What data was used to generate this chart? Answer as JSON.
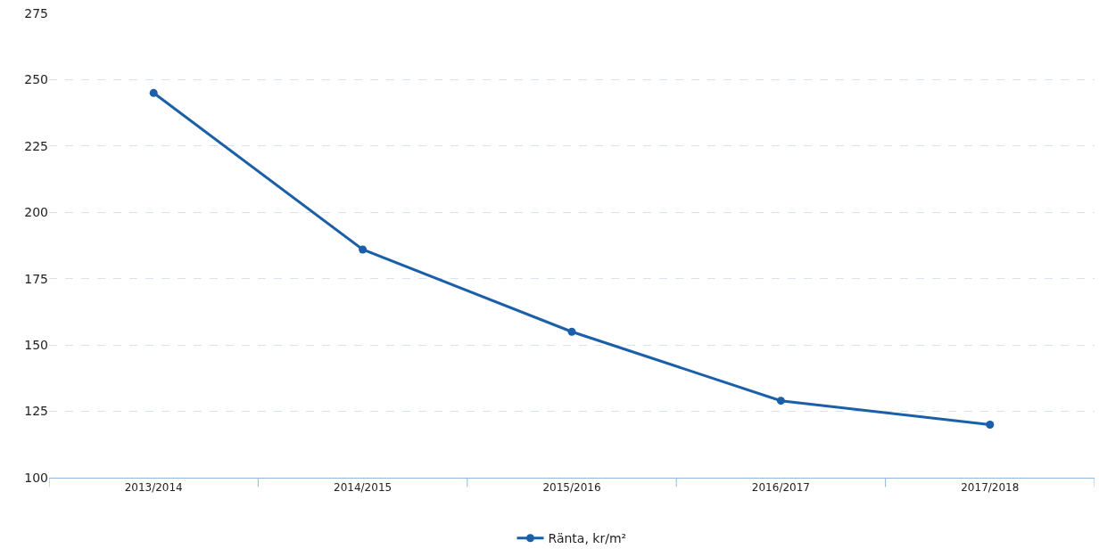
{
  "chart_data": {
    "type": "line",
    "categories": [
      "2013/2014",
      "2014/2015",
      "2015/2016",
      "2016/2017",
      "2017/2018"
    ],
    "series": [
      {
        "name": "Ränta, kr/m²",
        "color": "#1b5fa8",
        "values": [
          245,
          186,
          155,
          129,
          120
        ]
      }
    ],
    "ylim": [
      100,
      275
    ],
    "yticks": [
      100,
      125,
      150,
      175,
      200,
      225,
      250,
      275
    ],
    "grid": "y",
    "legend": "bottom",
    "marker": "circle",
    "line_style": "solid"
  }
}
